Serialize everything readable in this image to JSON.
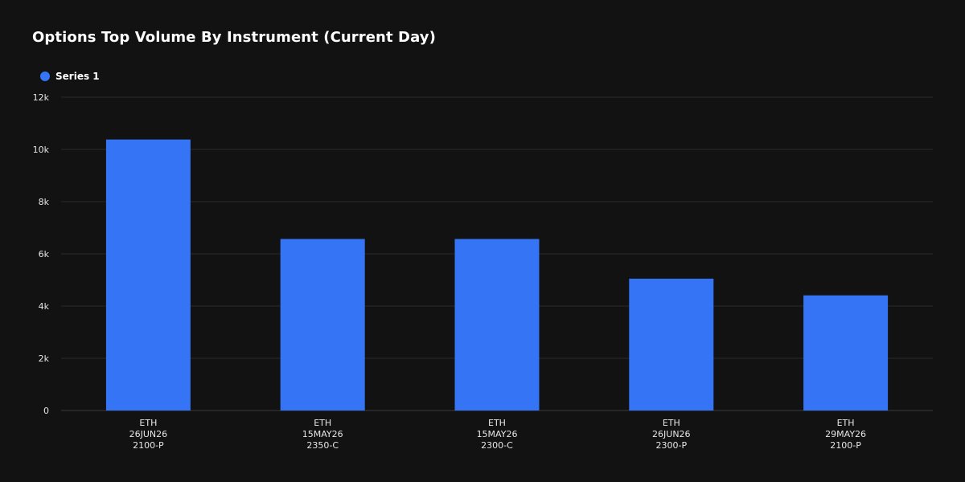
{
  "chart_data": {
    "type": "bar",
    "title": "Options Top Volume By Instrument (Current Day)",
    "xlabel": "",
    "ylabel": "",
    "ylim": [
      0,
      12000
    ],
    "yticks": [
      0,
      2000,
      4000,
      6000,
      8000,
      10000,
      12000
    ],
    "ytick_labels": [
      "0",
      "2k",
      "4k",
      "6k",
      "8k",
      "10k",
      "12k"
    ],
    "categories": [
      [
        "ETH",
        "26JUN26",
        "2100-P"
      ],
      [
        "ETH",
        "15MAY26",
        "2350-C"
      ],
      [
        "ETH",
        "15MAY26",
        "2300-C"
      ],
      [
        "ETH",
        "26JUN26",
        "2300-P"
      ],
      [
        "ETH",
        "29MAY26",
        "2100-P"
      ]
    ],
    "series": [
      {
        "name": "Series 1",
        "values": [
          10380,
          6570,
          6570,
          5050,
          4410
        ]
      }
    ],
    "legend": {
      "position": "top-left"
    },
    "grid": true,
    "colors": {
      "bar": "#3574f5",
      "background": "#121212",
      "grid": "#2a2a2a",
      "axis": "#3a3a3a",
      "tick_text": "#e6e6e6"
    }
  }
}
